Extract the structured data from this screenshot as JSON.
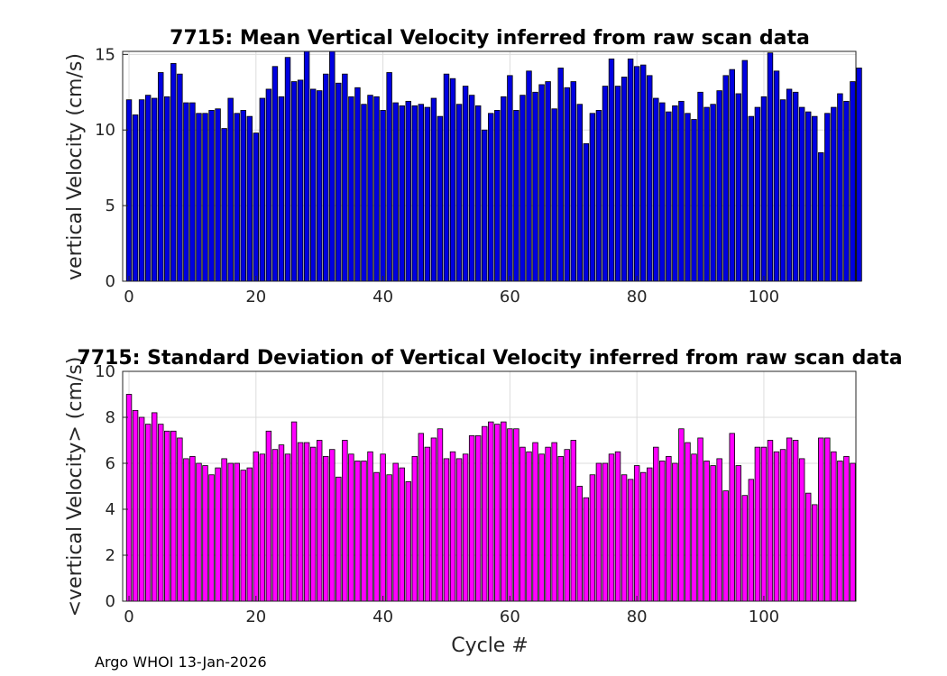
{
  "chart_data": [
    {
      "type": "bar",
      "title": "7715: Mean Vertical Velocity inferred from raw scan data",
      "xlabel": "",
      "ylabel": "vertical Velocity (cm/s)",
      "xlim": [
        -1,
        114.5
      ],
      "ylim": [
        0,
        15.2
      ],
      "xticks": [
        0,
        20,
        40,
        60,
        80,
        100
      ],
      "yticks": [
        0,
        5,
        10,
        15
      ],
      "grid": true,
      "color": "#0000e0",
      "x_start": 0,
      "values": [
        12.0,
        11.0,
        12.0,
        12.3,
        12.1,
        13.8,
        12.2,
        14.4,
        13.7,
        11.8,
        11.8,
        11.1,
        11.1,
        11.3,
        11.4,
        10.1,
        12.1,
        11.1,
        11.3,
        10.9,
        9.8,
        12.1,
        12.7,
        14.2,
        12.2,
        14.8,
        13.2,
        13.3,
        15.2,
        12.7,
        12.6,
        13.7,
        15.2,
        13.1,
        13.7,
        12.2,
        12.8,
        11.7,
        12.3,
        12.2,
        11.3,
        13.8,
        11.8,
        11.6,
        11.9,
        11.6,
        11.7,
        11.5,
        12.1,
        10.9,
        13.7,
        13.4,
        11.7,
        12.9,
        12.3,
        11.6,
        10.0,
        11.1,
        11.3,
        12.2,
        13.6,
        11.3,
        12.3,
        13.9,
        12.5,
        13.0,
        13.2,
        11.4,
        14.1,
        12.8,
        13.2,
        11.7,
        9.1,
        11.1,
        11.3,
        12.9,
        14.7,
        12.9,
        13.5,
        14.7,
        14.2,
        14.3,
        13.6,
        12.1,
        11.8,
        11.2,
        11.6,
        11.9,
        11.1,
        10.7,
        12.5,
        11.5,
        11.7,
        12.6,
        13.6,
        14.0,
        12.4,
        14.6,
        10.9,
        11.5,
        12.2,
        15.1,
        13.9,
        12.0,
        12.7,
        12.5,
        11.5,
        11.2,
        10.9,
        8.5,
        11.1,
        11.5,
        12.4,
        11.9,
        13.2,
        14.1
      ]
    },
    {
      "type": "bar",
      "title": "7715: Standard Deviation of Vertical Velocity inferred from raw scan data",
      "xlabel": "Cycle #",
      "ylabel": "<vertical Velocity> (cm/s)",
      "xlim": [
        -1,
        114.5
      ],
      "ylim": [
        0,
        10
      ],
      "xticks": [
        0,
        20,
        40,
        60,
        80,
        100
      ],
      "yticks": [
        0,
        2,
        4,
        6,
        8,
        10
      ],
      "grid": true,
      "color": "#ff00ff",
      "x_start": 0,
      "values": [
        9.0,
        8.3,
        8.0,
        7.7,
        8.2,
        7.7,
        7.4,
        7.4,
        7.1,
        6.2,
        6.3,
        6.0,
        5.9,
        5.5,
        5.8,
        6.2,
        6.0,
        6.0,
        5.7,
        5.8,
        6.5,
        6.4,
        7.4,
        6.6,
        6.8,
        6.4,
        7.8,
        6.9,
        6.9,
        6.7,
        7.0,
        6.3,
        6.6,
        5.4,
        7.0,
        6.4,
        6.1,
        6.1,
        6.5,
        5.6,
        6.4,
        5.5,
        6.0,
        5.8,
        5.2,
        6.3,
        7.3,
        6.7,
        7.1,
        7.5,
        6.2,
        6.5,
        6.2,
        6.4,
        7.2,
        7.2,
        7.6,
        7.8,
        7.7,
        7.8,
        7.5,
        7.5,
        6.7,
        6.5,
        6.9,
        6.4,
        6.7,
        6.9,
        6.3,
        6.6,
        7.0,
        5.0,
        4.5,
        5.5,
        6.0,
        6.0,
        6.4,
        6.5,
        5.5,
        5.3,
        5.9,
        5.6,
        5.8,
        6.7,
        6.1,
        6.3,
        6.0,
        7.5,
        6.9,
        6.4,
        7.1,
        6.1,
        5.9,
        6.2,
        4.8,
        7.3,
        5.9,
        4.6,
        5.3,
        6.7,
        6.7,
        7.0,
        6.5,
        6.6,
        7.1,
        7.0,
        6.2,
        4.7,
        4.2,
        7.1,
        7.1,
        6.5,
        6.1,
        6.3,
        6.0
      ]
    }
  ],
  "footer": "Argo WHOI 13-Jan-2026"
}
